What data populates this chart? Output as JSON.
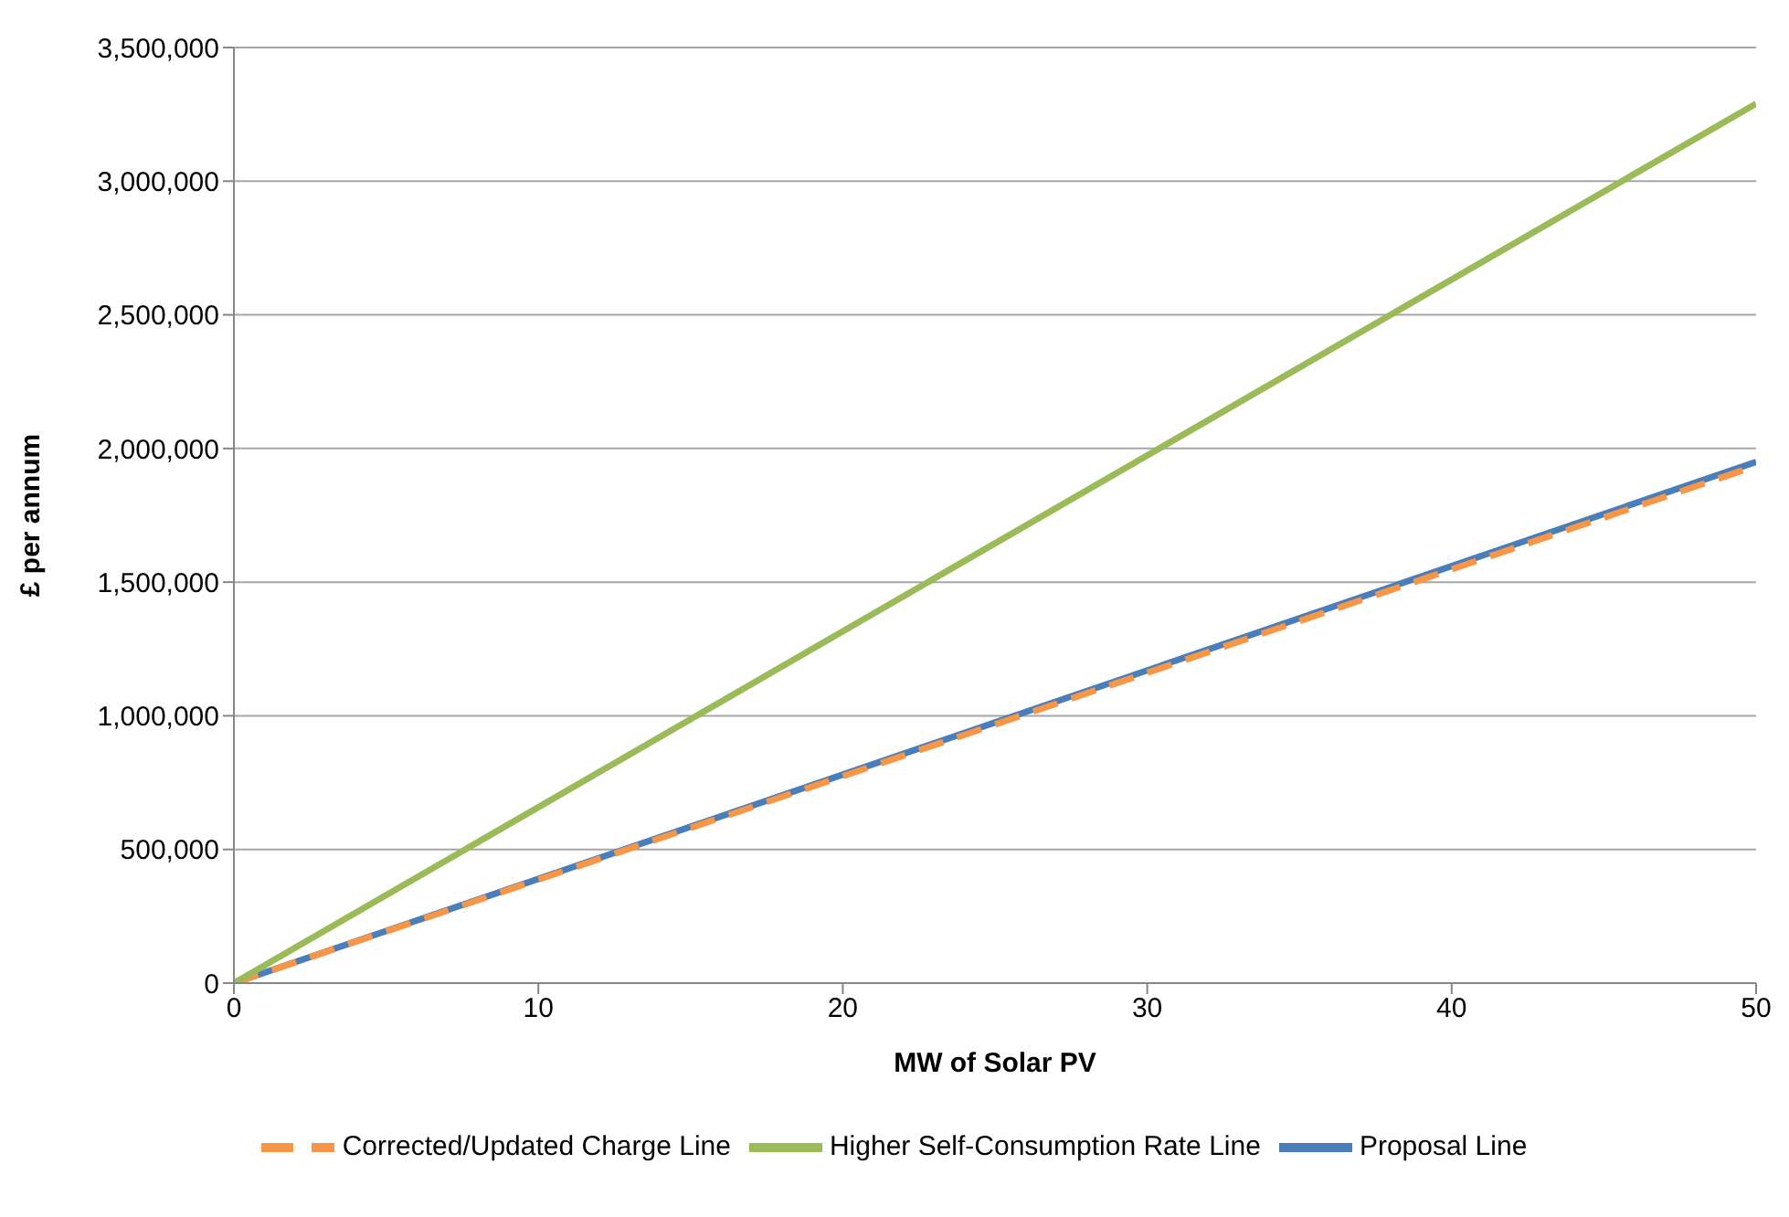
{
  "chart_data": {
    "type": "line",
    "xlabel": "MW of Solar PV",
    "ylabel": "£ per annum",
    "x": [
      0,
      50
    ],
    "series": [
      {
        "name": "Proposal Line",
        "color": "#4a7ebb",
        "values": [
          0,
          1950000
        ],
        "line_style": "solid"
      },
      {
        "name": "Corrected/Updated Charge Line",
        "color": "#f79646",
        "values": [
          0,
          1935000
        ],
        "line_style": "dashed"
      },
      {
        "name": "Higher Self-Consumption Rate Line",
        "color": "#9bbb59",
        "values": [
          0,
          3290000
        ],
        "line_style": "solid"
      }
    ],
    "xlim": [
      0,
      50
    ],
    "xticks": [
      0,
      10,
      20,
      30,
      40,
      50
    ],
    "ylim": [
      0,
      3500000
    ],
    "yticks": [
      0,
      {
        "value": 500000,
        "label": "500,000"
      },
      {
        "value": 1000000,
        "label": "1,000,000"
      },
      {
        "value": 1500000,
        "label": "1,500,000"
      },
      {
        "value": 2000000,
        "label": "2,000,000"
      },
      {
        "value": 2500000,
        "label": "2,500,000"
      },
      {
        "value": 3000000,
        "label": "3,000,000"
      },
      {
        "value": 3500000,
        "label": "3,500,000"
      }
    ],
    "grid": "y",
    "legend": "bottom",
    "marker": "none"
  }
}
